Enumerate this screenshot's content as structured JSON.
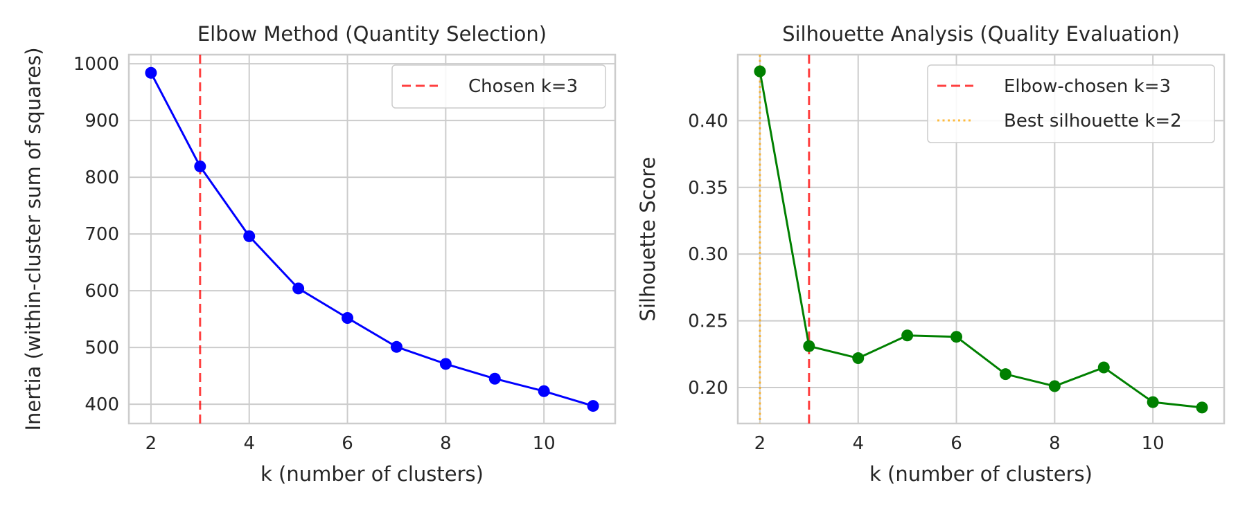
{
  "chart_data": [
    {
      "type": "line",
      "title": "Elbow Method (Quantity Selection)",
      "xlabel": "k (number of clusters)",
      "ylabel": "Inertia (within-cluster sum of squares)",
      "xlim": [
        1.55,
        11.45
      ],
      "ylim": [
        366,
        1016
      ],
      "xticks": [
        2,
        4,
        6,
        8,
        10
      ],
      "yticks": [
        400,
        500,
        600,
        700,
        800,
        900,
        1000
      ],
      "grid": true,
      "legend_position": "top-right",
      "x": [
        2,
        3,
        4,
        5,
        6,
        7,
        8,
        9,
        10,
        11
      ],
      "series": [
        {
          "values": [
            984,
            819,
            696,
            604,
            552,
            501,
            471,
            445,
            423,
            397
          ],
          "color": "#0000ff"
        }
      ],
      "vlines": [
        {
          "name": "Chosen k=3",
          "x": 3,
          "color": "#ff0000",
          "style": "dashed"
        }
      ]
    },
    {
      "type": "line",
      "title": "Silhouette Analysis (Quality Evaluation)",
      "xlabel": "k (number of clusters)",
      "ylabel": "Silhouette Score",
      "xlim": [
        1.55,
        11.45
      ],
      "ylim": [
        0.173,
        0.4495
      ],
      "xticks": [
        2,
        4,
        6,
        8,
        10
      ],
      "yticks": [
        0.2,
        0.25,
        0.3,
        0.35,
        0.4
      ],
      "ytick_labels": [
        "0.20",
        "0.25",
        "0.30",
        "0.35",
        "0.40"
      ],
      "grid": true,
      "legend_position": "top-right",
      "x": [
        2,
        3,
        4,
        5,
        6,
        7,
        8,
        9,
        10,
        11
      ],
      "series": [
        {
          "values": [
            0.437,
            0.231,
            0.222,
            0.239,
            0.238,
            0.21,
            0.201,
            0.215,
            0.189,
            0.185
          ],
          "color": "#008000"
        }
      ],
      "vlines": [
        {
          "name": "Elbow-chosen k=3",
          "x": 3,
          "color": "#ff0000",
          "style": "dashed"
        },
        {
          "name": "Best silhouette k=2",
          "x": 2,
          "color": "#ffa500",
          "style": "dotted"
        }
      ]
    }
  ]
}
